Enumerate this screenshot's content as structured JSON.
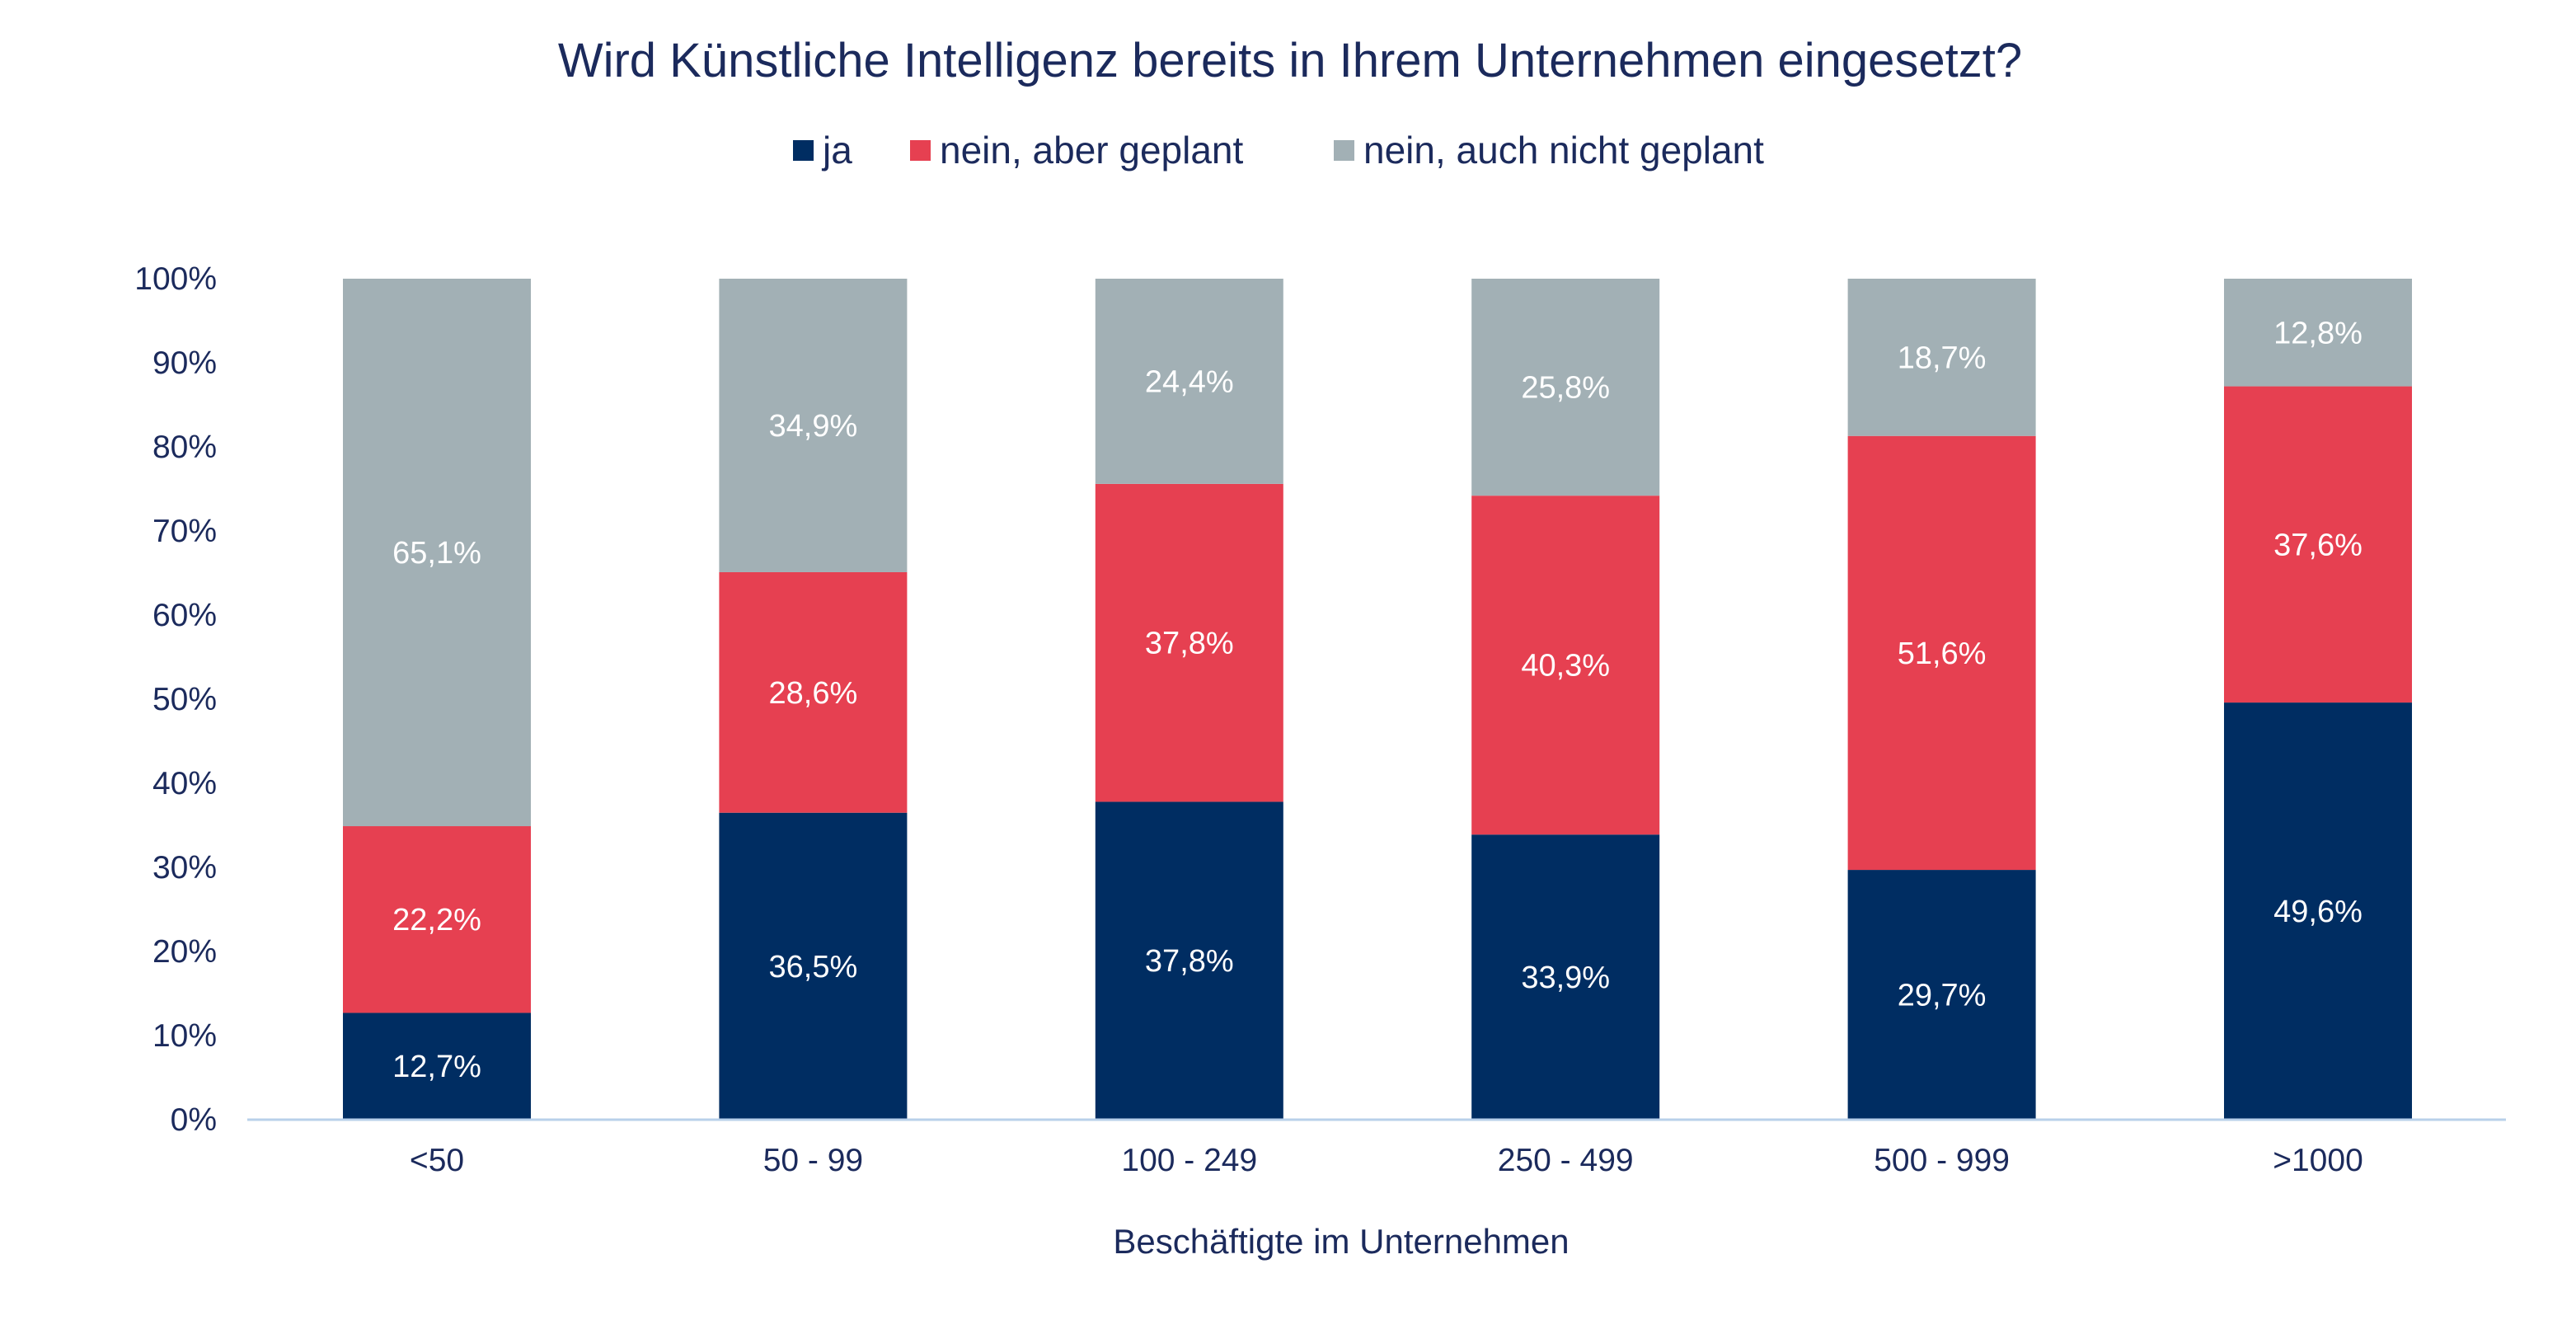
{
  "chart_data": {
    "type": "bar",
    "stacked": true,
    "title": "Wird Künstliche Intelligenz bereits in Ihrem Unternehmen eingesetzt?",
    "xlabel": "Beschäftigte im Unternehmen",
    "ylabel": "",
    "ylim": [
      0,
      100
    ],
    "ytick_labels": [
      "0%",
      "10%",
      "20%",
      "30%",
      "40%",
      "50%",
      "60%",
      "70%",
      "80%",
      "90%",
      "100%"
    ],
    "categories": [
      "<50",
      "50 - 99",
      "100 - 249",
      "250 - 499",
      "500 - 999",
      ">1000"
    ],
    "legend_position": "top-center",
    "grid": false,
    "series": [
      {
        "name": "ja",
        "color": "#002d62",
        "values": [
          12.7,
          36.5,
          37.8,
          33.9,
          29.7,
          49.6
        ],
        "labels": [
          "12,7%",
          "36,5%",
          "37,8%",
          "33,9%",
          "29,7%",
          "49,6%"
        ]
      },
      {
        "name": "nein, aber geplant",
        "color": "#e64051",
        "values": [
          22.2,
          28.6,
          37.8,
          40.3,
          51.6,
          37.6
        ],
        "labels": [
          "22,2%",
          "28,6%",
          "37,8%",
          "40,3%",
          "51,6%",
          "37,6%"
        ]
      },
      {
        "name": "nein, auch nicht geplant",
        "color": "#a2b0b5",
        "values": [
          65.1,
          34.9,
          24.4,
          25.8,
          18.7,
          12.8
        ],
        "labels": [
          "65,1%",
          "34,9%",
          "24,4%",
          "25,8%",
          "18,7%",
          "12,8%"
        ]
      }
    ]
  }
}
